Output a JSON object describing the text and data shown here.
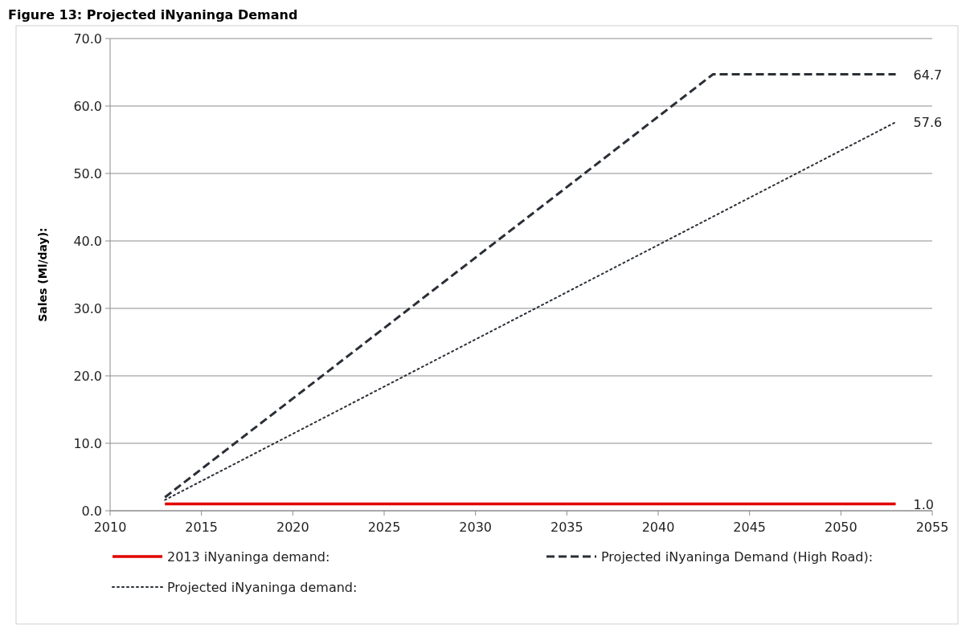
{
  "chart_data": {
    "type": "line",
    "title": "Figure 13: Projected iNyaninga Demand",
    "ylabel": "Sales (Ml/day):",
    "xlim": [
      2010,
      2055
    ],
    "xticks": [
      2010,
      2015,
      2020,
      2025,
      2030,
      2035,
      2040,
      2045,
      2050,
      2055
    ],
    "ylim": [
      0,
      70
    ],
    "yticks": [
      {
        "value": 0,
        "label": "0.0"
      },
      {
        "value": 10,
        "label": "10.0"
      },
      {
        "value": 20,
        "label": "20.0"
      },
      {
        "value": 30,
        "label": "30.0"
      },
      {
        "value": 40,
        "label": "40.0"
      },
      {
        "value": 50,
        "label": "50.0"
      },
      {
        "value": 60,
        "label": "60.0"
      },
      {
        "value": 70,
        "label": "70.0"
      }
    ],
    "grid": "y",
    "legend": "bottom",
    "marker": "none",
    "series": [
      {
        "name": "2013 iNyaninga demand:",
        "color": "#e00000",
        "line_style": "solid",
        "x": [
          2013,
          2053
        ],
        "values": [
          1.0,
          1.0
        ],
        "value_labels": [
          null,
          "1.0"
        ]
      },
      {
        "name": "Projected iNyaninga Demand (High Road):",
        "color": "#2a2f36",
        "line_style": "dashed",
        "x": [
          2013,
          2043,
          2053
        ],
        "values": [
          2.0,
          64.7,
          64.7
        ],
        "value_labels": [
          null,
          null,
          "64.7"
        ]
      },
      {
        "name": "Projected iNyaninga demand:",
        "color": "#2a2f36",
        "line_style": "dotted",
        "x": [
          2013,
          2053
        ],
        "values": [
          1.6,
          57.6
        ],
        "value_labels": [
          null,
          "57.6"
        ]
      }
    ]
  }
}
